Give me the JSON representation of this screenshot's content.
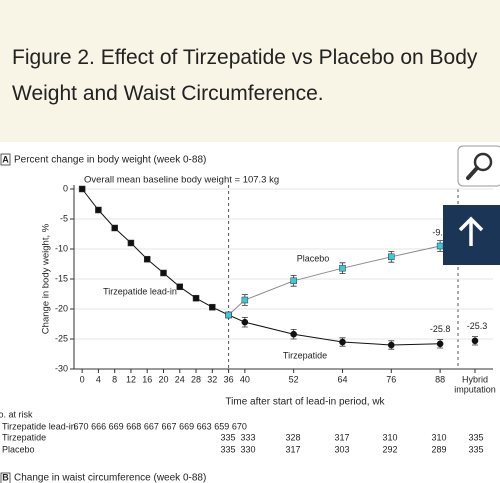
{
  "header": {
    "title": "Figure 2. Effect of Tirzepatide vs Placebo on Body Weight and Waist Circumference."
  },
  "chart_data": {
    "type": "line",
    "panel": "A",
    "title": "Percent change in body weight (week 0-88)",
    "annotation": "Overall mean baseline body weight = 107.3 kg",
    "x_label": "Time after start of lead-in period, wk",
    "y_label": "Change in body weight, %",
    "xlim": [
      -2,
      101
    ],
    "ylim": [
      -30,
      0
    ],
    "xticks": [
      0,
      4,
      8,
      12,
      16,
      20,
      24,
      28,
      32,
      36,
      40,
      52,
      64,
      76,
      88
    ],
    "yticks": [
      0,
      -5,
      -10,
      -15,
      -20,
      -25,
      -30
    ],
    "grid": true,
    "series": [
      {
        "name": "Tirzepatide lead-in",
        "color": "#111111",
        "line_color": "#111111",
        "marker": "square",
        "x": [
          0,
          4,
          8,
          12,
          16,
          20,
          24,
          28,
          32,
          36
        ],
        "values": [
          0,
          -3.5,
          -6.5,
          -9,
          -11.7,
          -14,
          -16.3,
          -18.2,
          -19.7,
          -21
        ]
      },
      {
        "name": "Tirzepatide",
        "color": "#111111",
        "line_color": "#111111",
        "marker": "circle",
        "x": [
          36,
          40,
          52,
          64,
          76,
          88
        ],
        "values": [
          -21,
          -22.2,
          -24.2,
          -25.5,
          -26,
          -25.8
        ],
        "errors": [
          null,
          0.8,
          0.8,
          0.7,
          0.7,
          0.7
        ]
      },
      {
        "name": "Placebo",
        "color": "#3cc8d8",
        "line_color": "#8a8a8a",
        "marker": "square",
        "x": [
          36,
          40,
          52,
          64,
          76,
          88
        ],
        "values": [
          -21,
          -18.5,
          -15.3,
          -13.2,
          -11.3,
          -9.5
        ],
        "errors": [
          null,
          0.9,
          0.9,
          0.9,
          0.9,
          0.9
        ]
      }
    ],
    "hybrid": {
      "label": [
        "Hybrid",
        "imputation"
      ],
      "value": -25.3,
      "error": 0.7
    }
  },
  "at_risk": {
    "title": "No. at risk",
    "rows": [
      {
        "label": "Tirzepatide lead-in",
        "values": [
          670,
          666,
          669,
          668,
          667,
          667,
          669,
          663,
          659,
          670
        ]
      },
      {
        "label": "Tirzepatide",
        "values": [
          335,
          333,
          328,
          317,
          310,
          310,
          335
        ]
      },
      {
        "label": "Placebo",
        "values": [
          335,
          330,
          317,
          303,
          292,
          289,
          335
        ]
      }
    ]
  },
  "panel_b": {
    "label": "B",
    "title": "Change in waist circumference (week 0-88)"
  }
}
